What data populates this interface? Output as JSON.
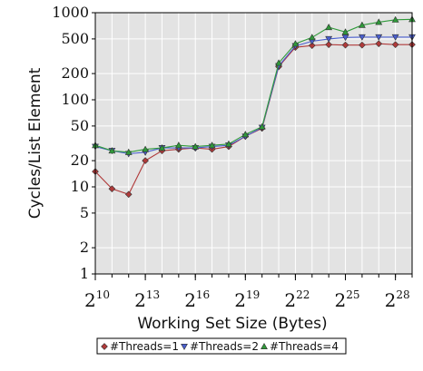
{
  "chart_data": {
    "type": "line",
    "title": "",
    "xlabel": "Working Set Size (Bytes)",
    "ylabel": "Cycles/List Element",
    "x_scale": "log2",
    "y_scale": "log10",
    "x_base": "2",
    "x_range_exponent": [
      10,
      29
    ],
    "x_tick_exponents": [
      "10",
      "13",
      "16",
      "19",
      "22",
      "25",
      "28"
    ],
    "ylim": [
      1,
      1000
    ],
    "y_ticks": [
      1,
      2,
      5,
      10,
      20,
      50,
      100,
      200,
      500,
      1000
    ],
    "y_tick_labels": [
      "1",
      "2",
      "5",
      "10",
      "20",
      "50",
      "100",
      "200",
      "500",
      "1000"
    ],
    "grid": true,
    "background_color": "#e3e3e3",
    "legend_position": "bottom",
    "x_exponents": [
      10,
      11,
      12,
      13,
      14,
      15,
      16,
      17,
      18,
      19,
      20,
      21,
      22,
      23,
      24,
      25,
      26,
      27,
      28,
      29
    ],
    "series": [
      {
        "name": "#Threads=1",
        "color": "#b03a3a",
        "marker": "diamond",
        "values": [
          15,
          9.5,
          8.2,
          20,
          26,
          27,
          28,
          27,
          29,
          38,
          47,
          240,
          400,
          420,
          430,
          425,
          425,
          440,
          430,
          430
        ]
      },
      {
        "name": "#Threads=2",
        "color": "#4a5fd0",
        "marker": "triangle-down",
        "values": [
          29,
          26,
          24,
          25,
          28,
          28,
          28,
          29,
          30,
          38,
          48,
          245,
          415,
          470,
          500,
          520,
          525,
          525,
          525,
          525
        ]
      },
      {
        "name": "#Threads=4",
        "color": "#2f9a3a",
        "marker": "triangle-up",
        "values": [
          30,
          26,
          25,
          27,
          28,
          30,
          29,
          30,
          31,
          40,
          49,
          265,
          440,
          520,
          680,
          600,
          720,
          780,
          830,
          840
        ]
      }
    ]
  }
}
